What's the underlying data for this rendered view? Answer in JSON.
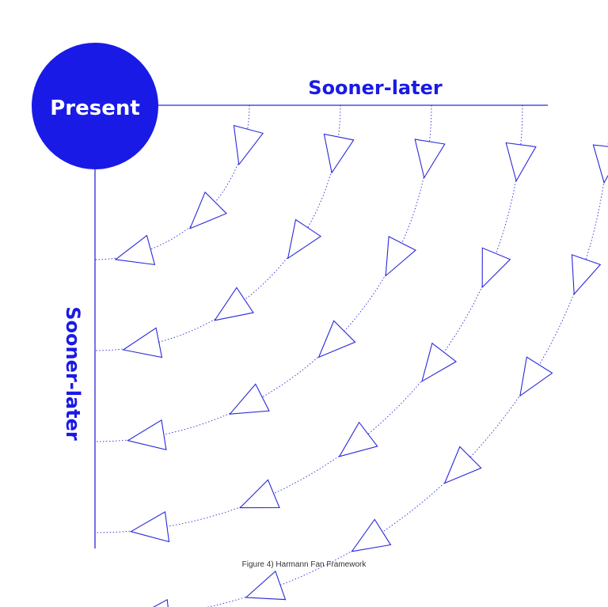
{
  "diagram": {
    "center_label": "Present",
    "horizontal_axis_label": "Sooner-later",
    "vertical_axis_label": "Sooner-later",
    "caption": "Figure 4) Harmann Fan Framework",
    "ring_count": 5,
    "arrows_per_ring": [
      3,
      4,
      5,
      6,
      7
    ],
    "colors": {
      "accent": "#1a1ae6",
      "line": "#2a2ad8",
      "caption": "#333333"
    },
    "shapes": {
      "center": "filled-circle",
      "arrow": "outline-triangle",
      "arc": "dotted-line"
    }
  }
}
